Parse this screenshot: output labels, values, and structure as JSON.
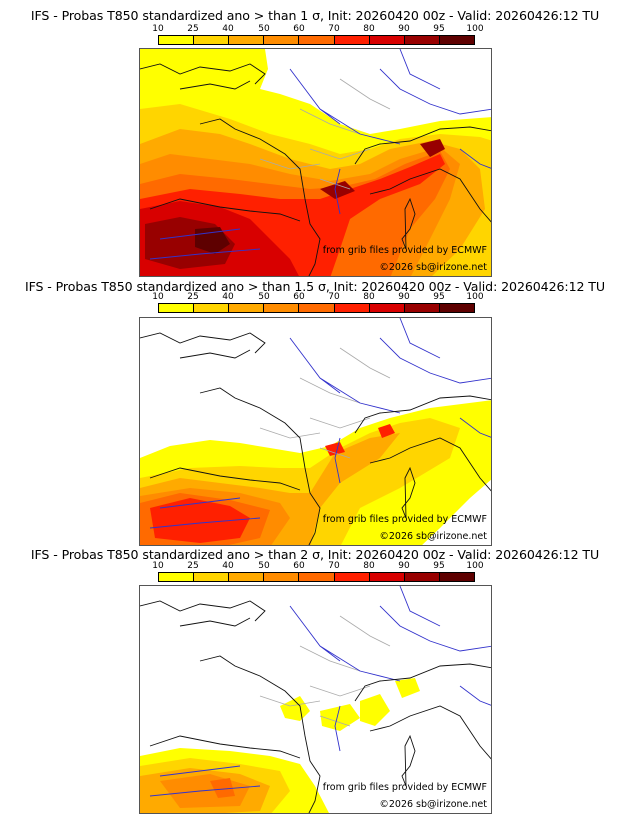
{
  "colorbar": {
    "ticks": [
      "10",
      "25",
      "40",
      "50",
      "60",
      "70",
      "80",
      "90",
      "95",
      "100"
    ],
    "colors": [
      "#ffff00",
      "#ffd500",
      "#ffaa00",
      "#ff8c00",
      "#ff6a00",
      "#ff2000",
      "#d80000",
      "#980000",
      "#5e0000"
    ]
  },
  "panels": [
    {
      "title": "IFS - Probas T850  standardized ano > than 1 σ, Init: 20260420 00z - Valid: 20260426:12 TU",
      "threshold_sigma": "1",
      "credit_source": "from grib files provided by ECMWF",
      "credit_copyright": "©2026 sb@irizone.net"
    },
    {
      "title": "IFS - Probas T850  standardized ano > than 1.5 σ, Init: 20260420 00z - Valid: 20260426:12 TU",
      "threshold_sigma": "1.5",
      "credit_source": "from grib files provided by ECMWF",
      "credit_copyright": "©2026 sb@irizone.net"
    },
    {
      "title": "IFS - Probas T850  standardized ano > than 2 σ, Init: 20260420 00z - Valid: 20260426:12 TU",
      "threshold_sigma": "2",
      "credit_source": "from grib files provided by ECMWF",
      "credit_copyright": "©2026 sb@irizone.net"
    }
  ],
  "map_colors": {
    "coastline": "#111111",
    "rivers": "#3333cc",
    "admin_borders": "#aaaaaa"
  }
}
